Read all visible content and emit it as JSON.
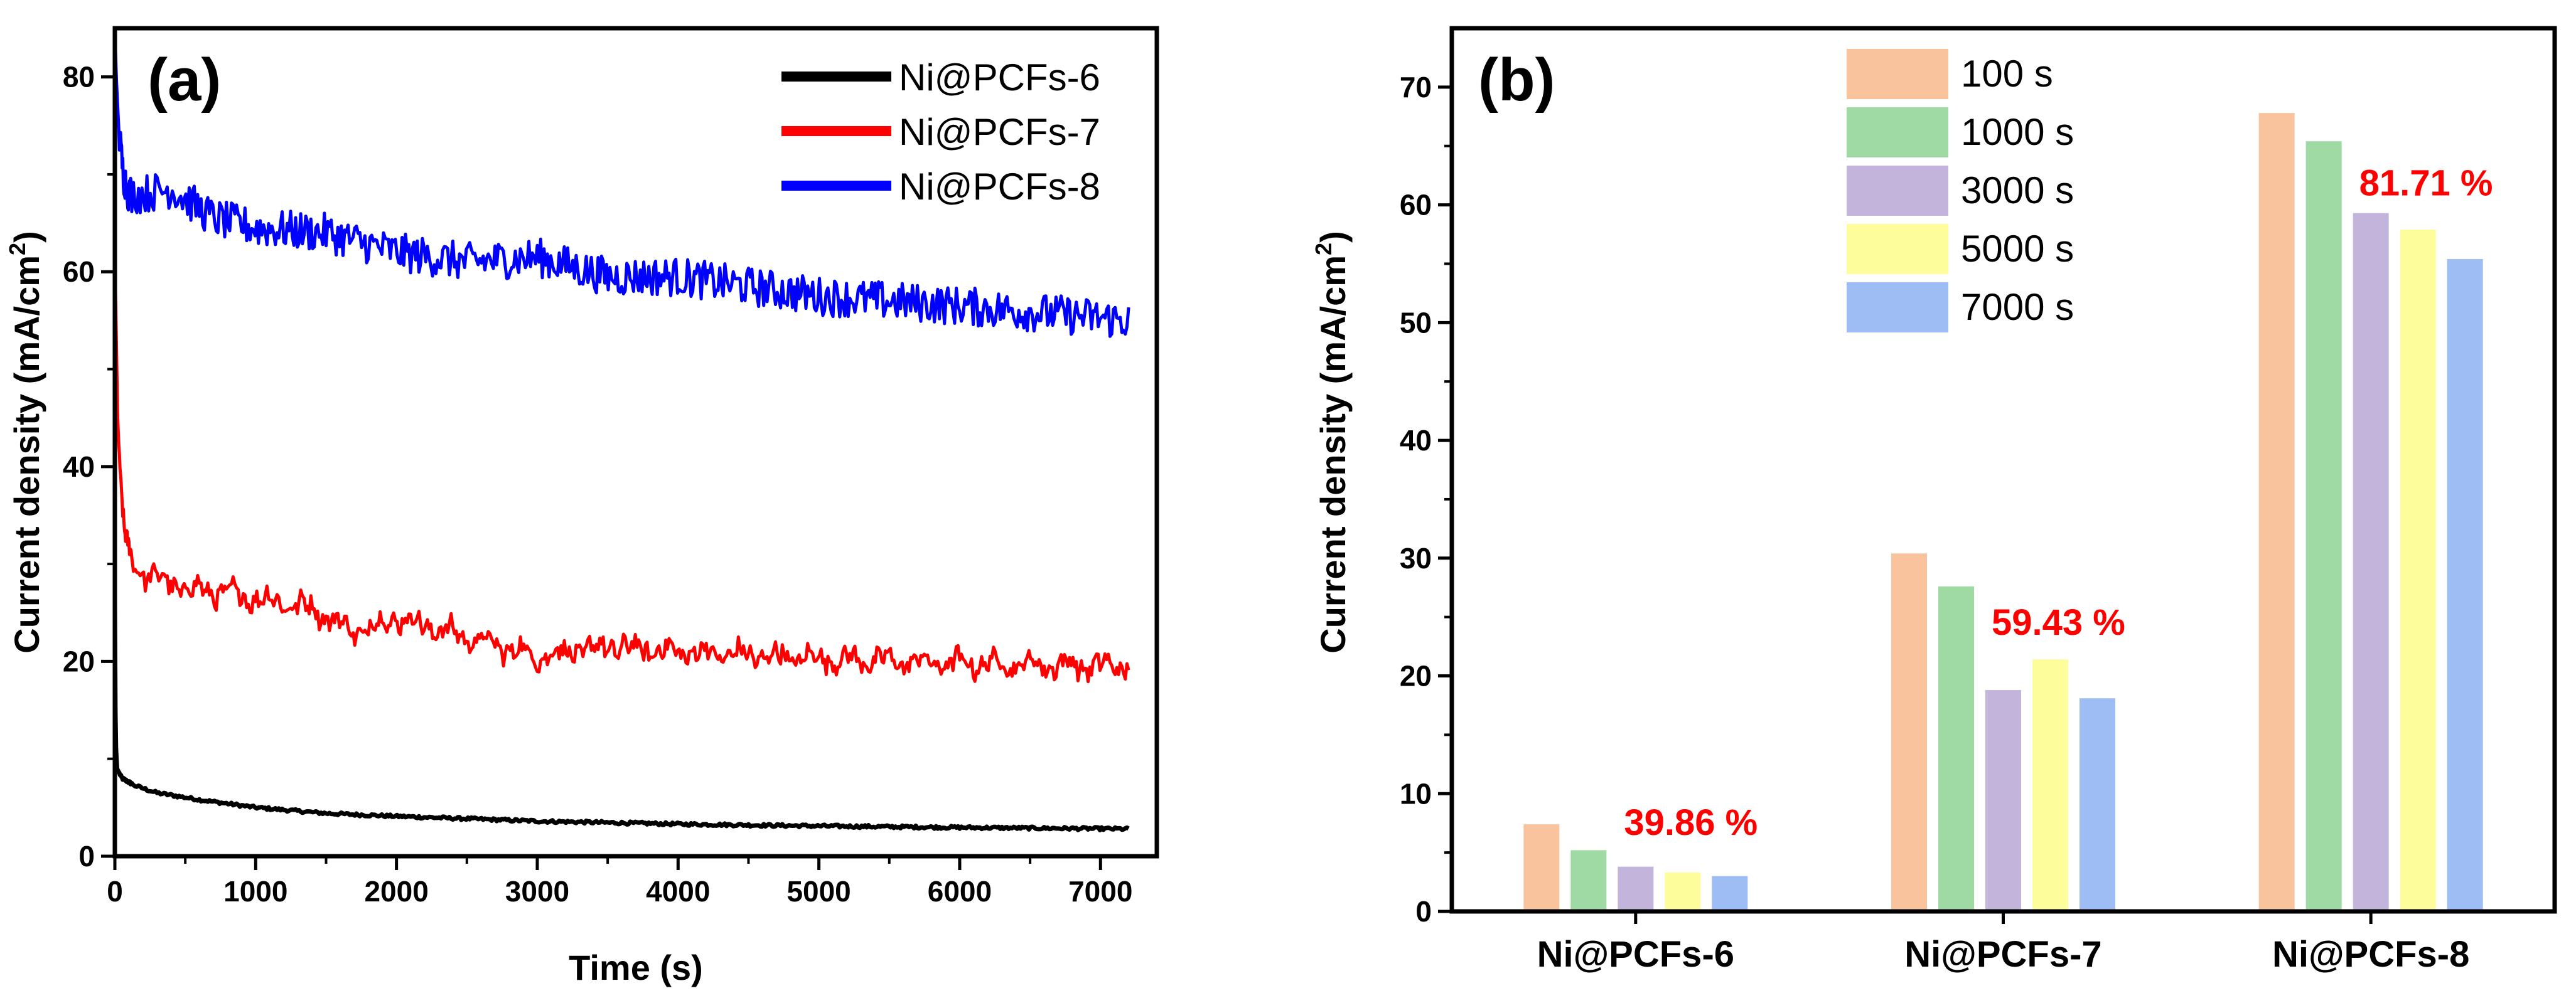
{
  "chart_data": [
    {
      "panel": "(a)",
      "type": "line",
      "xlabel": "Time (s)",
      "ylabel_main": "Current density (mA/cm",
      "ylabel_sup": "2",
      "ylabel_close": ")",
      "xlim": [
        0,
        7400
      ],
      "ylim": [
        0,
        85
      ],
      "xticks": [
        0,
        1000,
        2000,
        3000,
        4000,
        5000,
        6000,
        7000
      ],
      "yticks": [
        0,
        20,
        40,
        60,
        80
      ],
      "legend_position": "top-right",
      "series": [
        {
          "name": "Ni@PCFs-6",
          "color": "#000000",
          "noise": 0.15,
          "points": [
            [
              0,
              26
            ],
            [
              5,
              12
            ],
            [
              15,
              9
            ],
            [
              50,
              8
            ],
            [
              150,
              7.2
            ],
            [
              300,
              6.5
            ],
            [
              600,
              5.8
            ],
            [
              1000,
              5.0
            ],
            [
              1500,
              4.4
            ],
            [
              2000,
              4.1
            ],
            [
              3000,
              3.6
            ],
            [
              4000,
              3.3
            ],
            [
              5000,
              3.1
            ],
            [
              6000,
              2.95
            ],
            [
              7200,
              2.8
            ]
          ]
        },
        {
          "name": "Ni@PCFs-7",
          "color": "#ff0000",
          "noise": 0.9,
          "points": [
            [
              0,
              62
            ],
            [
              8,
              55
            ],
            [
              20,
              45
            ],
            [
              40,
              38
            ],
            [
              70,
              33
            ],
            [
              100,
              31
            ],
            [
              200,
              29
            ],
            [
              500,
              27.5
            ],
            [
              800,
              27
            ],
            [
              1000,
              26.5
            ],
            [
              1400,
              25.5
            ],
            [
              1700,
              23
            ],
            [
              2000,
              24.5
            ],
            [
              2500,
              22.5
            ],
            [
              3000,
              20.5
            ],
            [
              3500,
              21.5
            ],
            [
              4000,
              21.0
            ],
            [
              5000,
              20.3
            ],
            [
              6000,
              19.8
            ],
            [
              7200,
              19.5
            ]
          ]
        },
        {
          "name": "Ni@PCFs-8",
          "color": "#0000ff",
          "noise": 2.0,
          "points": [
            [
              0,
              85
            ],
            [
              10,
              80
            ],
            [
              30,
              74
            ],
            [
              60,
              70
            ],
            [
              100,
              68
            ],
            [
              200,
              68
            ],
            [
              400,
              68.5
            ],
            [
              700,
              65.5
            ],
            [
              1000,
              64.5
            ],
            [
              1500,
              64
            ],
            [
              2000,
              62
            ],
            [
              2500,
              61
            ],
            [
              3000,
              61.5
            ],
            [
              3500,
              59.5
            ],
            [
              4000,
              59.5
            ],
            [
              5000,
              57.5
            ],
            [
              6000,
              56.5
            ],
            [
              7200,
              55
            ]
          ]
        }
      ]
    },
    {
      "panel": "(b)",
      "type": "bar",
      "ylabel_main": "Current density (mA/cm",
      "ylabel_sup": "2",
      "ylabel_close": ")",
      "ylim": [
        0,
        75
      ],
      "yticks": [
        0,
        10,
        20,
        30,
        40,
        50,
        60,
        70
      ],
      "legend_position": "top-center",
      "categories": [
        "Ni@PCFs-6",
        "Ni@PCFs-7",
        "Ni@PCFs-8"
      ],
      "series": [
        {
          "name": "100 s",
          "color": "#f9c49d",
          "values": [
            7.4,
            30.4,
            67.8
          ]
        },
        {
          "name": "1000 s",
          "color": "#9fd9a4",
          "values": [
            5.2,
            27.6,
            65.4
          ]
        },
        {
          "name": "3000 s",
          "color": "#c2b4db",
          "values": [
            3.8,
            18.8,
            59.3
          ]
        },
        {
          "name": "5000 s",
          "color": "#fdfd9b",
          "values": [
            3.3,
            21.4,
            57.9
          ]
        },
        {
          "name": "7000 s",
          "color": "#9fbdf5",
          "values": [
            3.0,
            18.1,
            55.4
          ]
        }
      ],
      "annotations": [
        {
          "text": "39.86 %",
          "category": 0,
          "y": 6.5,
          "color": "#ff0000"
        },
        {
          "text": "59.43 %",
          "category": 1,
          "y": 23.5,
          "color": "#ff0000"
        },
        {
          "text": "81.71 %",
          "category": 2,
          "y": 60.8,
          "color": "#ff0000"
        }
      ]
    }
  ]
}
